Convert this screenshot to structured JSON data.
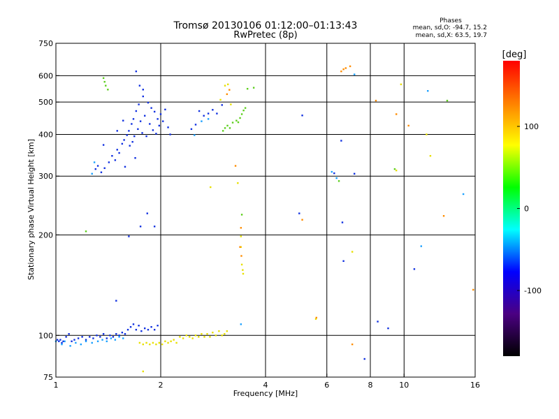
{
  "chart_data": {
    "type": "scatter",
    "title": "Tromsø 20130106 01:12:00–01:13:43",
    "subtitle": "RwPretec (8p)",
    "xlabel": "Frequency [MHz]",
    "ylabel": "Stationary phase Virtual Height [km]",
    "x_scale": "log",
    "y_scale": "log",
    "xlim": [
      1,
      16
    ],
    "ylim": [
      75,
      750
    ],
    "x_ticks": [
      1,
      2,
      4,
      6,
      8,
      10,
      16
    ],
    "y_ticks": [
      75,
      100,
      200,
      300,
      400,
      500,
      600,
      750
    ],
    "grid": true,
    "phases_header": "Phases",
    "phase_stats": [
      "mean, sd,O: -94.7, 15.2",
      "mean, sd,X:  63.5, 19.7"
    ],
    "colorbar": {
      "label": "[deg]",
      "range": [
        -180,
        180
      ],
      "ticks": [
        100,
        0,
        -100
      ],
      "colors": [
        "#000000",
        "#4b0082",
        "#0000ff",
        "#00ffff",
        "#00ff00",
        "#ffff00",
        "#ff8000",
        "#ff0000"
      ]
    },
    "series": [
      {
        "mode": "O",
        "color": "#1030e0",
        "points": [
          [
            1.01,
            97
          ],
          [
            1.02,
            96
          ],
          [
            1.03,
            97
          ],
          [
            1.04,
            95
          ],
          [
            1.05,
            96
          ],
          [
            1.07,
            99
          ],
          [
            1.09,
            101
          ],
          [
            1.11,
            96
          ],
          [
            1.13,
            97
          ],
          [
            1.16,
            98
          ],
          [
            1.19,
            99
          ],
          [
            1.22,
            97
          ],
          [
            1.25,
            99
          ],
          [
            1.28,
            98
          ],
          [
            1.31,
            100
          ],
          [
            1.34,
            99
          ],
          [
            1.37,
            101
          ],
          [
            1.4,
            98
          ],
          [
            1.43,
            100
          ],
          [
            1.46,
            99
          ],
          [
            1.49,
            101
          ],
          [
            1.52,
            100
          ],
          [
            1.55,
            102
          ],
          [
            1.58,
            101
          ],
          [
            1.61,
            104
          ],
          [
            1.64,
            106
          ],
          [
            1.67,
            108
          ],
          [
            1.7,
            104
          ],
          [
            1.73,
            107
          ],
          [
            1.76,
            103
          ],
          [
            1.8,
            105
          ],
          [
            1.84,
            104
          ],
          [
            1.88,
            106
          ],
          [
            1.92,
            104
          ],
          [
            1.96,
            107
          ],
          [
            1.3,
            315
          ],
          [
            1.32,
            322
          ],
          [
            1.35,
            308
          ],
          [
            1.38,
            317
          ],
          [
            1.42,
            330
          ],
          [
            1.45,
            345
          ],
          [
            1.48,
            335
          ],
          [
            1.5,
            360
          ],
          [
            1.52,
            352
          ],
          [
            1.55,
            375
          ],
          [
            1.57,
            385
          ],
          [
            1.6,
            398
          ],
          [
            1.62,
            410
          ],
          [
            1.63,
            370
          ],
          [
            1.65,
            430
          ],
          [
            1.67,
            445
          ],
          [
            1.68,
            395
          ],
          [
            1.7,
            470
          ],
          [
            1.72,
            415
          ],
          [
            1.73,
            492
          ],
          [
            1.75,
            438
          ],
          [
            1.77,
            404
          ],
          [
            1.78,
            520
          ],
          [
            1.8,
            455
          ],
          [
            1.82,
            395
          ],
          [
            1.84,
            498
          ],
          [
            1.86,
            430
          ],
          [
            1.88,
            480
          ],
          [
            1.9,
            412
          ],
          [
            1.92,
            468
          ],
          [
            1.94,
            402
          ],
          [
            1.96,
            445
          ],
          [
            1.98,
            425
          ],
          [
            2.0,
            460
          ],
          [
            2.03,
            438
          ],
          [
            2.06,
            475
          ],
          [
            2.1,
            420
          ],
          [
            2.13,
            400
          ],
          [
            1.7,
            618
          ],
          [
            1.74,
            560
          ],
          [
            1.78,
            545
          ],
          [
            1.5,
            410
          ],
          [
            1.56,
            440
          ],
          [
            1.58,
            320
          ],
          [
            1.66,
            380
          ],
          [
            1.69,
            340
          ],
          [
            1.62,
            198
          ],
          [
            1.75,
            212
          ],
          [
            1.83,
            232
          ],
          [
            1.92,
            212
          ],
          [
            1.49,
            127
          ],
          [
            1.37,
            372
          ],
          [
            2.45,
            415
          ],
          [
            2.52,
            428
          ],
          [
            2.58,
            470
          ],
          [
            2.66,
            455
          ],
          [
            2.74,
            462
          ],
          [
            2.82,
            474
          ],
          [
            2.9,
            462
          ],
          [
            3.0,
            490
          ],
          [
            5.0,
            232
          ],
          [
            5.1,
            456
          ],
          [
            6.6,
            383
          ],
          [
            6.65,
            218
          ],
          [
            6.7,
            167
          ],
          [
            7.2,
            305
          ],
          [
            8.4,
            110
          ],
          [
            9.0,
            105
          ],
          [
            10.7,
            158
          ],
          [
            7.7,
            85
          ],
          [
            6.3,
            306
          ]
        ]
      },
      {
        "mode": "O-low",
        "color": "#1aa0ff",
        "points": [
          [
            1.0,
            96
          ],
          [
            1.04,
            94
          ],
          [
            1.06,
            96
          ],
          [
            1.1,
            93
          ],
          [
            1.14,
            95
          ],
          [
            1.18,
            94
          ],
          [
            1.22,
            96
          ],
          [
            1.27,
            95
          ],
          [
            1.32,
            96
          ],
          [
            1.36,
            97
          ],
          [
            1.4,
            96
          ],
          [
            1.44,
            98
          ],
          [
            1.48,
            97
          ],
          [
            1.52,
            99
          ],
          [
            1.56,
            98
          ],
          [
            1.27,
            305
          ],
          [
            1.29,
            330
          ],
          [
            2.5,
            398
          ],
          [
            2.62,
            438
          ],
          [
            2.74,
            445
          ],
          [
            3.4,
            108
          ],
          [
            6.2,
            309
          ],
          [
            6.4,
            296
          ],
          [
            11.7,
            540
          ],
          [
            14.8,
            265
          ],
          [
            11.2,
            185
          ],
          [
            7.2,
            605
          ]
        ]
      },
      {
        "mode": "X",
        "color": "#e8e000",
        "points": [
          [
            1.74,
            95
          ],
          [
            1.78,
            94
          ],
          [
            1.82,
            95
          ],
          [
            1.86,
            94
          ],
          [
            1.9,
            95
          ],
          [
            1.94,
            94
          ],
          [
            1.98,
            95
          ],
          [
            2.02,
            94
          ],
          [
            2.06,
            96
          ],
          [
            2.1,
            95
          ],
          [
            2.14,
            96
          ],
          [
            2.18,
            97
          ],
          [
            2.22,
            95
          ],
          [
            2.27,
            99
          ],
          [
            2.32,
            98
          ],
          [
            2.37,
            100
          ],
          [
            2.42,
            99
          ],
          [
            2.47,
            98
          ],
          [
            2.52,
            100
          ],
          [
            2.57,
            99
          ],
          [
            2.62,
            101
          ],
          [
            2.67,
            99
          ],
          [
            2.72,
            101
          ],
          [
            2.77,
            99
          ],
          [
            2.82,
            102
          ],
          [
            2.88,
            100
          ],
          [
            2.94,
            103
          ],
          [
            3.0,
            100
          ],
          [
            3.05,
            101
          ],
          [
            3.1,
            103
          ],
          [
            2.78,
            278
          ],
          [
            2.97,
            508
          ],
          [
            3.06,
            560
          ],
          [
            3.12,
            565
          ],
          [
            3.18,
            492
          ],
          [
            3.33,
            286
          ],
          [
            3.4,
            198
          ],
          [
            3.4,
            184
          ],
          [
            3.42,
            163
          ],
          [
            3.44,
            157
          ],
          [
            3.45,
            153
          ],
          [
            5.58,
            112
          ],
          [
            7.1,
            178
          ],
          [
            9.5,
            312
          ],
          [
            11.6,
            400
          ],
          [
            11.9,
            345
          ],
          [
            9.8,
            565
          ],
          [
            1.78,
            78
          ]
        ]
      },
      {
        "mode": "X-high",
        "color": "#5ccf1c",
        "points": [
          [
            1.37,
            590
          ],
          [
            1.38,
            575
          ],
          [
            1.39,
            560
          ],
          [
            1.41,
            545
          ],
          [
            1.22,
            205
          ],
          [
            3.02,
            410
          ],
          [
            3.06,
            418
          ],
          [
            3.11,
            425
          ],
          [
            3.16,
            418
          ],
          [
            3.22,
            434
          ],
          [
            3.3,
            440
          ],
          [
            3.34,
            435
          ],
          [
            3.38,
            448
          ],
          [
            3.42,
            460
          ],
          [
            3.46,
            472
          ],
          [
            3.5,
            480
          ],
          [
            3.42,
            230
          ],
          [
            6.5,
            290
          ],
          [
            9.4,
            315
          ],
          [
            13.3,
            505
          ],
          [
            3.55,
            548
          ],
          [
            3.7,
            552
          ]
        ]
      },
      {
        "mode": "X-warm",
        "color": "#ff8c00",
        "points": [
          [
            3.4,
            210
          ],
          [
            3.38,
            184
          ],
          [
            3.41,
            173
          ],
          [
            3.28,
            322
          ],
          [
            5.1,
            222
          ],
          [
            5.6,
            113
          ],
          [
            6.7,
            627
          ],
          [
            6.8,
            632
          ],
          [
            7.0,
            640
          ],
          [
            6.6,
            618
          ],
          [
            8.3,
            505
          ],
          [
            9.5,
            460
          ],
          [
            10.3,
            425
          ],
          [
            13.0,
            228
          ],
          [
            15.8,
            137
          ],
          [
            7.1,
            94
          ],
          [
            3.15,
            544
          ],
          [
            3.1,
            528
          ]
        ]
      }
    ]
  }
}
